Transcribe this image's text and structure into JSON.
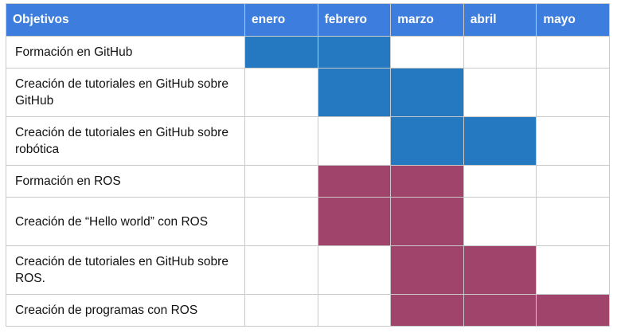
{
  "header": {
    "objectives_label": "Objetivos",
    "months": [
      "enero",
      "febrero",
      "marzo",
      "abril",
      "mayo"
    ]
  },
  "colors": {
    "header_bg": "#3c7ddd",
    "github_fill": "#2479c0",
    "ros_fill": "#a1446b"
  },
  "rows": [
    {
      "objective": "Formación en GitHub",
      "active": [
        1,
        1,
        0,
        0,
        0
      ],
      "color": "#2479c0"
    },
    {
      "objective": "Creación de tutoriales en GitHub sobre GitHub",
      "active": [
        0,
        1,
        1,
        0,
        0
      ],
      "color": "#2479c0"
    },
    {
      "objective": "Creación de tutoriales en GitHub sobre robótica",
      "active": [
        0,
        0,
        1,
        1,
        0
      ],
      "color": "#2479c0"
    },
    {
      "objective": "Formación en ROS",
      "active": [
        0,
        1,
        1,
        0,
        0
      ],
      "color": "#a1446b"
    },
    {
      "objective": "Creación de “Hello world” con ROS",
      "active": [
        0,
        1,
        1,
        0,
        0
      ],
      "color": "#a1446b"
    },
    {
      "objective": "Creación de tutoriales en GitHub sobre ROS.",
      "active": [
        0,
        0,
        1,
        1,
        0
      ],
      "color": "#a1446b"
    },
    {
      "objective": "Creación de programas con ROS",
      "active": [
        0,
        0,
        1,
        1,
        1
      ],
      "color": "#a1446b"
    }
  ]
}
